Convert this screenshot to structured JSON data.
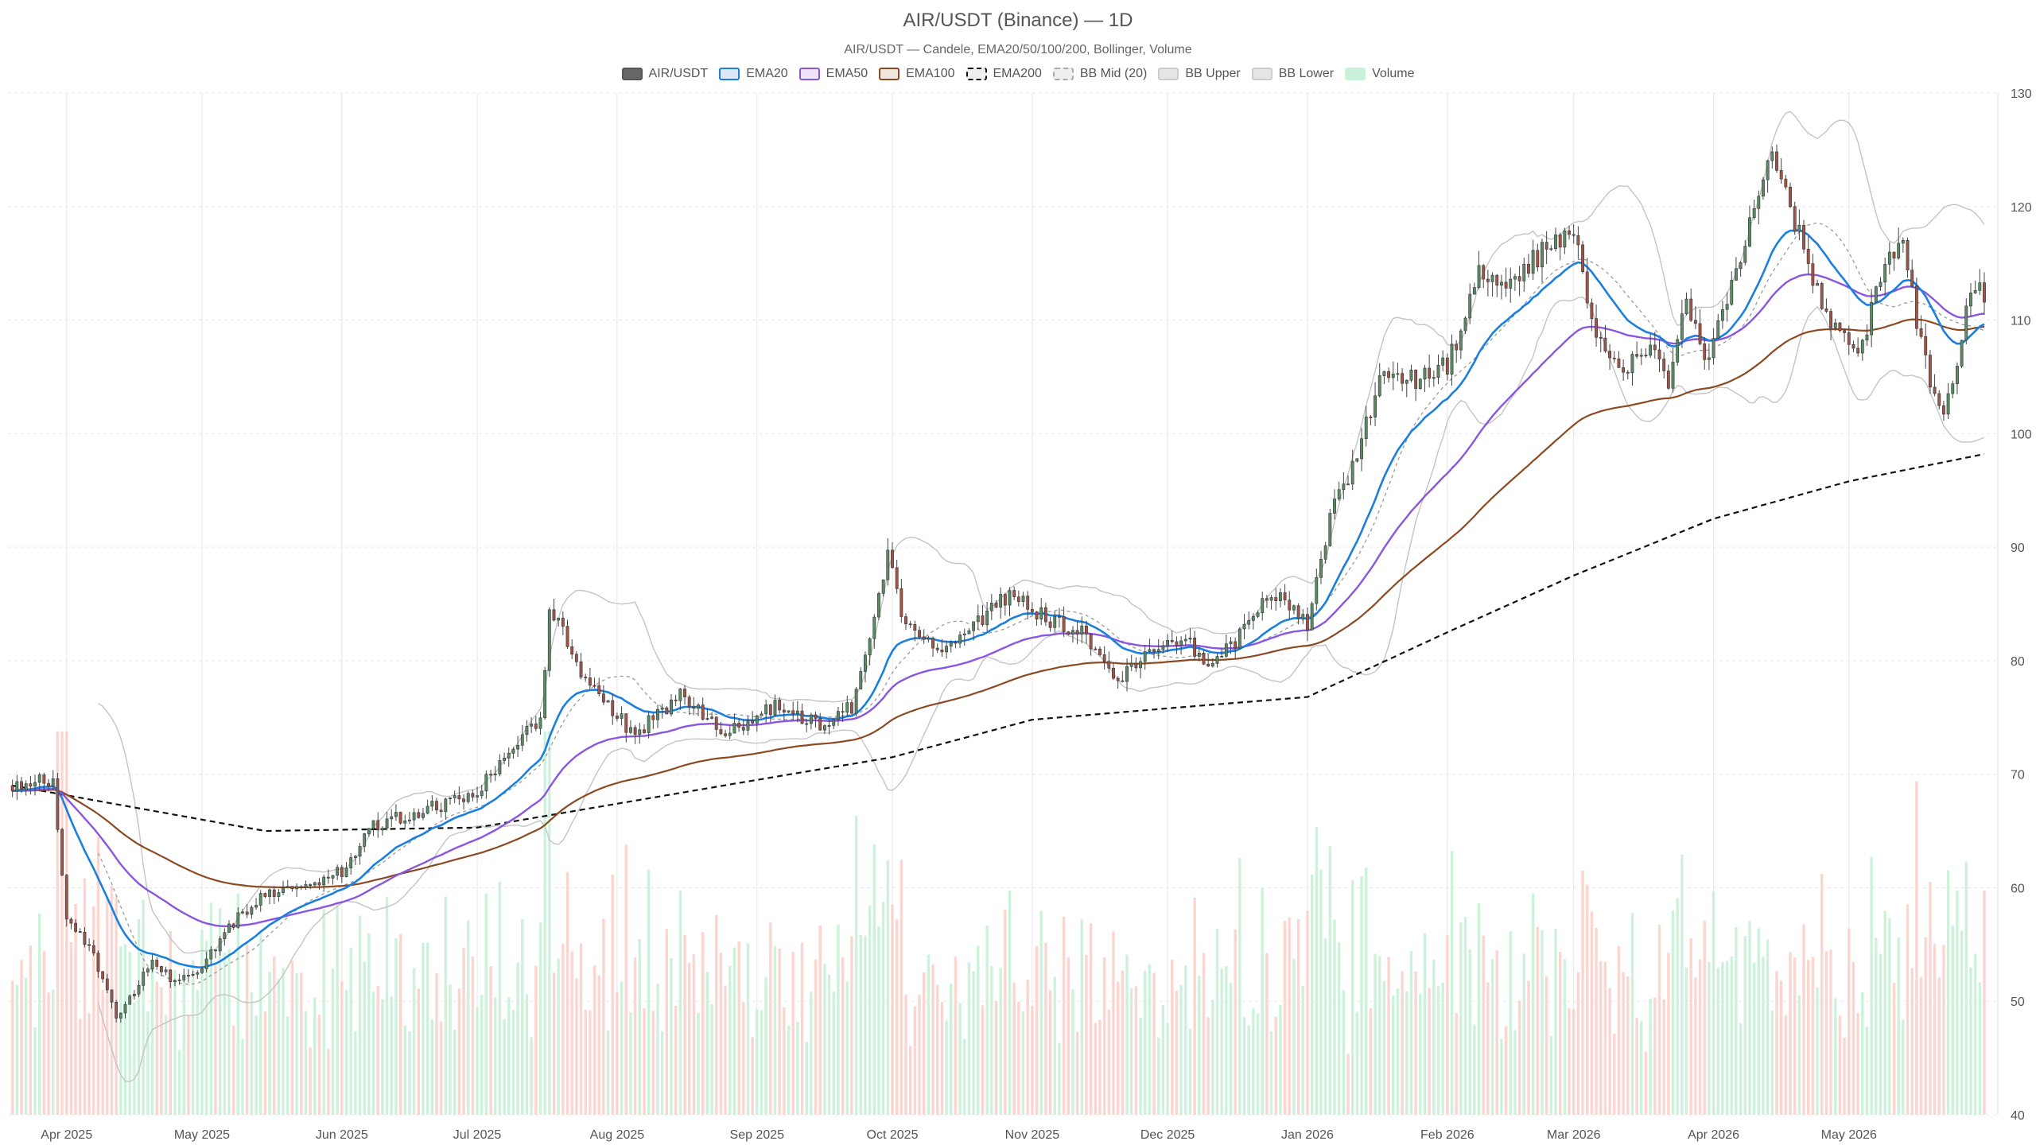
{
  "chart_data": {
    "type": "candlestick",
    "title": "AIR/USDT (Binance) — 1D",
    "subtitle": "AIR/USDT — Candele, EMA20/50/100/200, Bollinger, Volume",
    "legend": [
      {
        "name": "AIR/USDT",
        "fill": "#666666",
        "stroke": "#555555",
        "dash": false
      },
      {
        "name": "EMA20",
        "fill": "#dbe9fb",
        "stroke": "#1a7fe0",
        "dash": false
      },
      {
        "name": "EMA50",
        "fill": "#ede4fb",
        "stroke": "#8a56e0",
        "dash": false
      },
      {
        "name": "EMA100",
        "fill": "#f1e6dc",
        "stroke": "#8b4a22",
        "dash": false
      },
      {
        "name": "EMA200",
        "fill": "#eeeeee",
        "stroke": "#111111",
        "dash": true
      },
      {
        "name": "BB Mid (20)",
        "fill": "#eeeeee",
        "stroke": "#aaaaaa",
        "dash": true
      },
      {
        "name": "BB Upper",
        "fill": "#e5e5e5",
        "stroke": "#cccccc",
        "dash": false
      },
      {
        "name": "BB Lower",
        "fill": "#e5e5e5",
        "stroke": "#cccccc",
        "dash": false
      },
      {
        "name": "Volume",
        "fill": "#c9f0d8",
        "stroke": "#c9f0d8",
        "dash": false
      }
    ],
    "y_ticks": [
      40,
      50,
      60,
      70,
      80,
      90,
      100,
      110,
      120,
      130
    ],
    "ylim": [
      40,
      130
    ],
    "x_range": [
      "2025-03-19",
      "2026-06-03"
    ],
    "x_ticks": [
      {
        "date": "2025-04-01",
        "label": "Apr 2025"
      },
      {
        "date": "2025-05-01",
        "label": "May 2025"
      },
      {
        "date": "2025-06-01",
        "label": "Jun 2025"
      },
      {
        "date": "2025-07-01",
        "label": "Jul 2025"
      },
      {
        "date": "2025-08-01",
        "label": "Aug 2025"
      },
      {
        "date": "2025-09-01",
        "label": "Sep 2025"
      },
      {
        "date": "2025-10-01",
        "label": "Oct 2025"
      },
      {
        "date": "2025-11-01",
        "label": "Nov 2025"
      },
      {
        "date": "2025-12-01",
        "label": "Dec 2025"
      },
      {
        "date": "2026-01-01",
        "label": "Jan 2026"
      },
      {
        "date": "2026-02-01",
        "label": "Feb 2026"
      },
      {
        "date": "2026-03-01",
        "label": "Mar 2026"
      },
      {
        "date": "2026-04-01",
        "label": "Apr 2026"
      },
      {
        "date": "2026-05-01",
        "label": "May 2026"
      }
    ],
    "candles": {
      "first_date": "2025-03-20",
      "last_date": "2026-05-31",
      "close_anchors": [
        {
          "date": "2025-03-20",
          "close": 69.0
        },
        {
          "date": "2025-03-29",
          "close": 69.5
        },
        {
          "date": "2025-04-01",
          "close": 57.0
        },
        {
          "date": "2025-04-06",
          "close": 55.0
        },
        {
          "date": "2025-04-12",
          "close": 48.5
        },
        {
          "date": "2025-04-20",
          "close": 53.5
        },
        {
          "date": "2025-04-25",
          "close": 51.5
        },
        {
          "date": "2025-05-01",
          "close": 53.0
        },
        {
          "date": "2025-05-08",
          "close": 57.0
        },
        {
          "date": "2025-05-15",
          "close": 59.5
        },
        {
          "date": "2025-05-25",
          "close": 60.5
        },
        {
          "date": "2025-06-01",
          "close": 61.5
        },
        {
          "date": "2025-06-08",
          "close": 65.5
        },
        {
          "date": "2025-06-20",
          "close": 67.0
        },
        {
          "date": "2025-06-30",
          "close": 68.0
        },
        {
          "date": "2025-07-10",
          "close": 73.0
        },
        {
          "date": "2025-07-15",
          "close": 74.5
        },
        {
          "date": "2025-07-17",
          "close": 85.0
        },
        {
          "date": "2025-07-25",
          "close": 78.0
        },
        {
          "date": "2025-08-05",
          "close": 73.5
        },
        {
          "date": "2025-08-15",
          "close": 77.0
        },
        {
          "date": "2025-08-25",
          "close": 73.5
        },
        {
          "date": "2025-09-05",
          "close": 76.0
        },
        {
          "date": "2025-09-15",
          "close": 74.5
        },
        {
          "date": "2025-09-22",
          "close": 76.0
        },
        {
          "date": "2025-09-26",
          "close": 82.0
        },
        {
          "date": "2025-09-30",
          "close": 89.0
        },
        {
          "date": "2025-10-04",
          "close": 83.0
        },
        {
          "date": "2025-10-12",
          "close": 81.0
        },
        {
          "date": "2025-10-20",
          "close": 83.5
        },
        {
          "date": "2025-10-27",
          "close": 86.0
        },
        {
          "date": "2025-11-05",
          "close": 83.5
        },
        {
          "date": "2025-11-12",
          "close": 82.5
        },
        {
          "date": "2025-11-20",
          "close": 78.0
        },
        {
          "date": "2025-11-28",
          "close": 81.5
        },
        {
          "date": "2025-12-05",
          "close": 82.0
        },
        {
          "date": "2025-12-10",
          "close": 79.5
        },
        {
          "date": "2025-12-18",
          "close": 82.5
        },
        {
          "date": "2025-12-24",
          "close": 86.0
        },
        {
          "date": "2026-01-01",
          "close": 83.0
        },
        {
          "date": "2026-01-04",
          "close": 89.0
        },
        {
          "date": "2026-01-07",
          "close": 94.0
        },
        {
          "date": "2026-01-12",
          "close": 98.0
        },
        {
          "date": "2026-01-18",
          "close": 106.0
        },
        {
          "date": "2026-01-25",
          "close": 104.5
        },
        {
          "date": "2026-02-01",
          "close": 106.0
        },
        {
          "date": "2026-02-08",
          "close": 114.0
        },
        {
          "date": "2026-02-15",
          "close": 113.0
        },
        {
          "date": "2026-02-22",
          "close": 116.0
        },
        {
          "date": "2026-03-01",
          "close": 117.5
        },
        {
          "date": "2026-03-05",
          "close": 110.0
        },
        {
          "date": "2026-03-12",
          "close": 105.5
        },
        {
          "date": "2026-03-18",
          "close": 108.0
        },
        {
          "date": "2026-03-22",
          "close": 104.0
        },
        {
          "date": "2026-03-26",
          "close": 112.0
        },
        {
          "date": "2026-03-30",
          "close": 106.0
        },
        {
          "date": "2026-04-05",
          "close": 113.0
        },
        {
          "date": "2026-04-10",
          "close": 120.0
        },
        {
          "date": "2026-04-14",
          "close": 124.0
        },
        {
          "date": "2026-04-20",
          "close": 117.5
        },
        {
          "date": "2026-04-26",
          "close": 110.0
        },
        {
          "date": "2026-05-03",
          "close": 106.5
        },
        {
          "date": "2026-05-08",
          "close": 114.0
        },
        {
          "date": "2026-05-13",
          "close": 116.5
        },
        {
          "date": "2026-05-18",
          "close": 106.0
        },
        {
          "date": "2026-05-22",
          "close": 102.0
        },
        {
          "date": "2026-05-26",
          "close": 108.0
        },
        {
          "date": "2026-05-28",
          "close": 112.5
        },
        {
          "date": "2026-05-31",
          "close": 112.5
        }
      ]
    },
    "ema200_anchors": [
      {
        "date": "2025-03-20",
        "value": 69.0
      },
      {
        "date": "2025-05-15",
        "value": 65.0
      },
      {
        "date": "2025-07-01",
        "value": 65.3
      },
      {
        "date": "2025-09-01",
        "value": 69.5
      },
      {
        "date": "2025-10-01",
        "value": 71.5
      },
      {
        "date": "2025-11-01",
        "value": 74.8
      },
      {
        "date": "2025-12-01",
        "value": 75.8
      },
      {
        "date": "2026-01-01",
        "value": 76.8
      },
      {
        "date": "2026-02-01",
        "value": 82.5
      },
      {
        "date": "2026-03-01",
        "value": 87.5
      },
      {
        "date": "2026-04-01",
        "value": 92.5
      },
      {
        "date": "2026-05-01",
        "value": 95.8
      },
      {
        "date": "2026-05-31",
        "value": 98.2
      }
    ]
  }
}
